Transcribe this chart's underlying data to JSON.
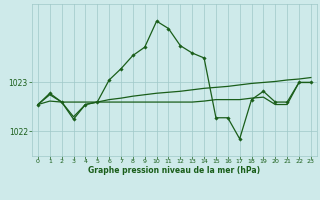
{
  "title": "Graphe pression niveau de la mer (hPa)",
  "background_color": "#ceeaea",
  "plot_bg_color": "#ceeaea",
  "line_color": "#1a5e1a",
  "grid_color": "#9fc8c8",
  "ylim": [
    1021.5,
    1024.6
  ],
  "yticks": [
    1022,
    1023
  ],
  "xticks": [
    0,
    1,
    2,
    3,
    4,
    5,
    6,
    7,
    8,
    9,
    10,
    11,
    12,
    13,
    14,
    15,
    16,
    17,
    18,
    19,
    20,
    21,
    22,
    23
  ],
  "series": [
    {
      "x": [
        0,
        1,
        2,
        3,
        4,
        5,
        6,
        7,
        8,
        9,
        10,
        11,
        12,
        13,
        14,
        15,
        16,
        17,
        18,
        19,
        20,
        21,
        22,
        23
      ],
      "y": [
        1022.55,
        1022.62,
        1022.6,
        1022.6,
        1022.6,
        1022.6,
        1022.6,
        1022.6,
        1022.6,
        1022.6,
        1022.6,
        1022.6,
        1022.6,
        1022.6,
        1022.62,
        1022.65,
        1022.65,
        1022.65,
        1022.68,
        1022.7,
        1022.55,
        1022.55,
        1023.0,
        1023.0
      ],
      "markers": false,
      "linewidth": 0.9
    },
    {
      "x": [
        0,
        1,
        2,
        3,
        4,
        5,
        6,
        7,
        8,
        9,
        10,
        11,
        12,
        13,
        14,
        15,
        16,
        17,
        18,
        19,
        20,
        21,
        22,
        23
      ],
      "y": [
        1022.55,
        1022.75,
        1022.6,
        1022.3,
        1022.55,
        1022.6,
        1022.65,
        1022.68,
        1022.72,
        1022.75,
        1022.78,
        1022.8,
        1022.82,
        1022.85,
        1022.88,
        1022.9,
        1022.92,
        1022.95,
        1022.98,
        1023.0,
        1023.02,
        1023.05,
        1023.07,
        1023.1
      ],
      "markers": false,
      "linewidth": 0.9
    },
    {
      "x": [
        0,
        1,
        2,
        3,
        4,
        5,
        6,
        7,
        8,
        9,
        10,
        11,
        12,
        13,
        14,
        15,
        16,
        17,
        18,
        19,
        20,
        21,
        22,
        23
      ],
      "y": [
        1022.55,
        1022.78,
        1022.6,
        1022.25,
        1022.55,
        1022.6,
        1023.05,
        1023.28,
        1023.55,
        1023.72,
        1024.25,
        1024.1,
        1023.75,
        1023.6,
        1023.5,
        1022.28,
        1022.28,
        1021.85,
        1022.65,
        1022.82,
        1022.6,
        1022.6,
        1023.0,
        1023.0
      ],
      "markers": true,
      "linewidth": 0.9
    }
  ]
}
